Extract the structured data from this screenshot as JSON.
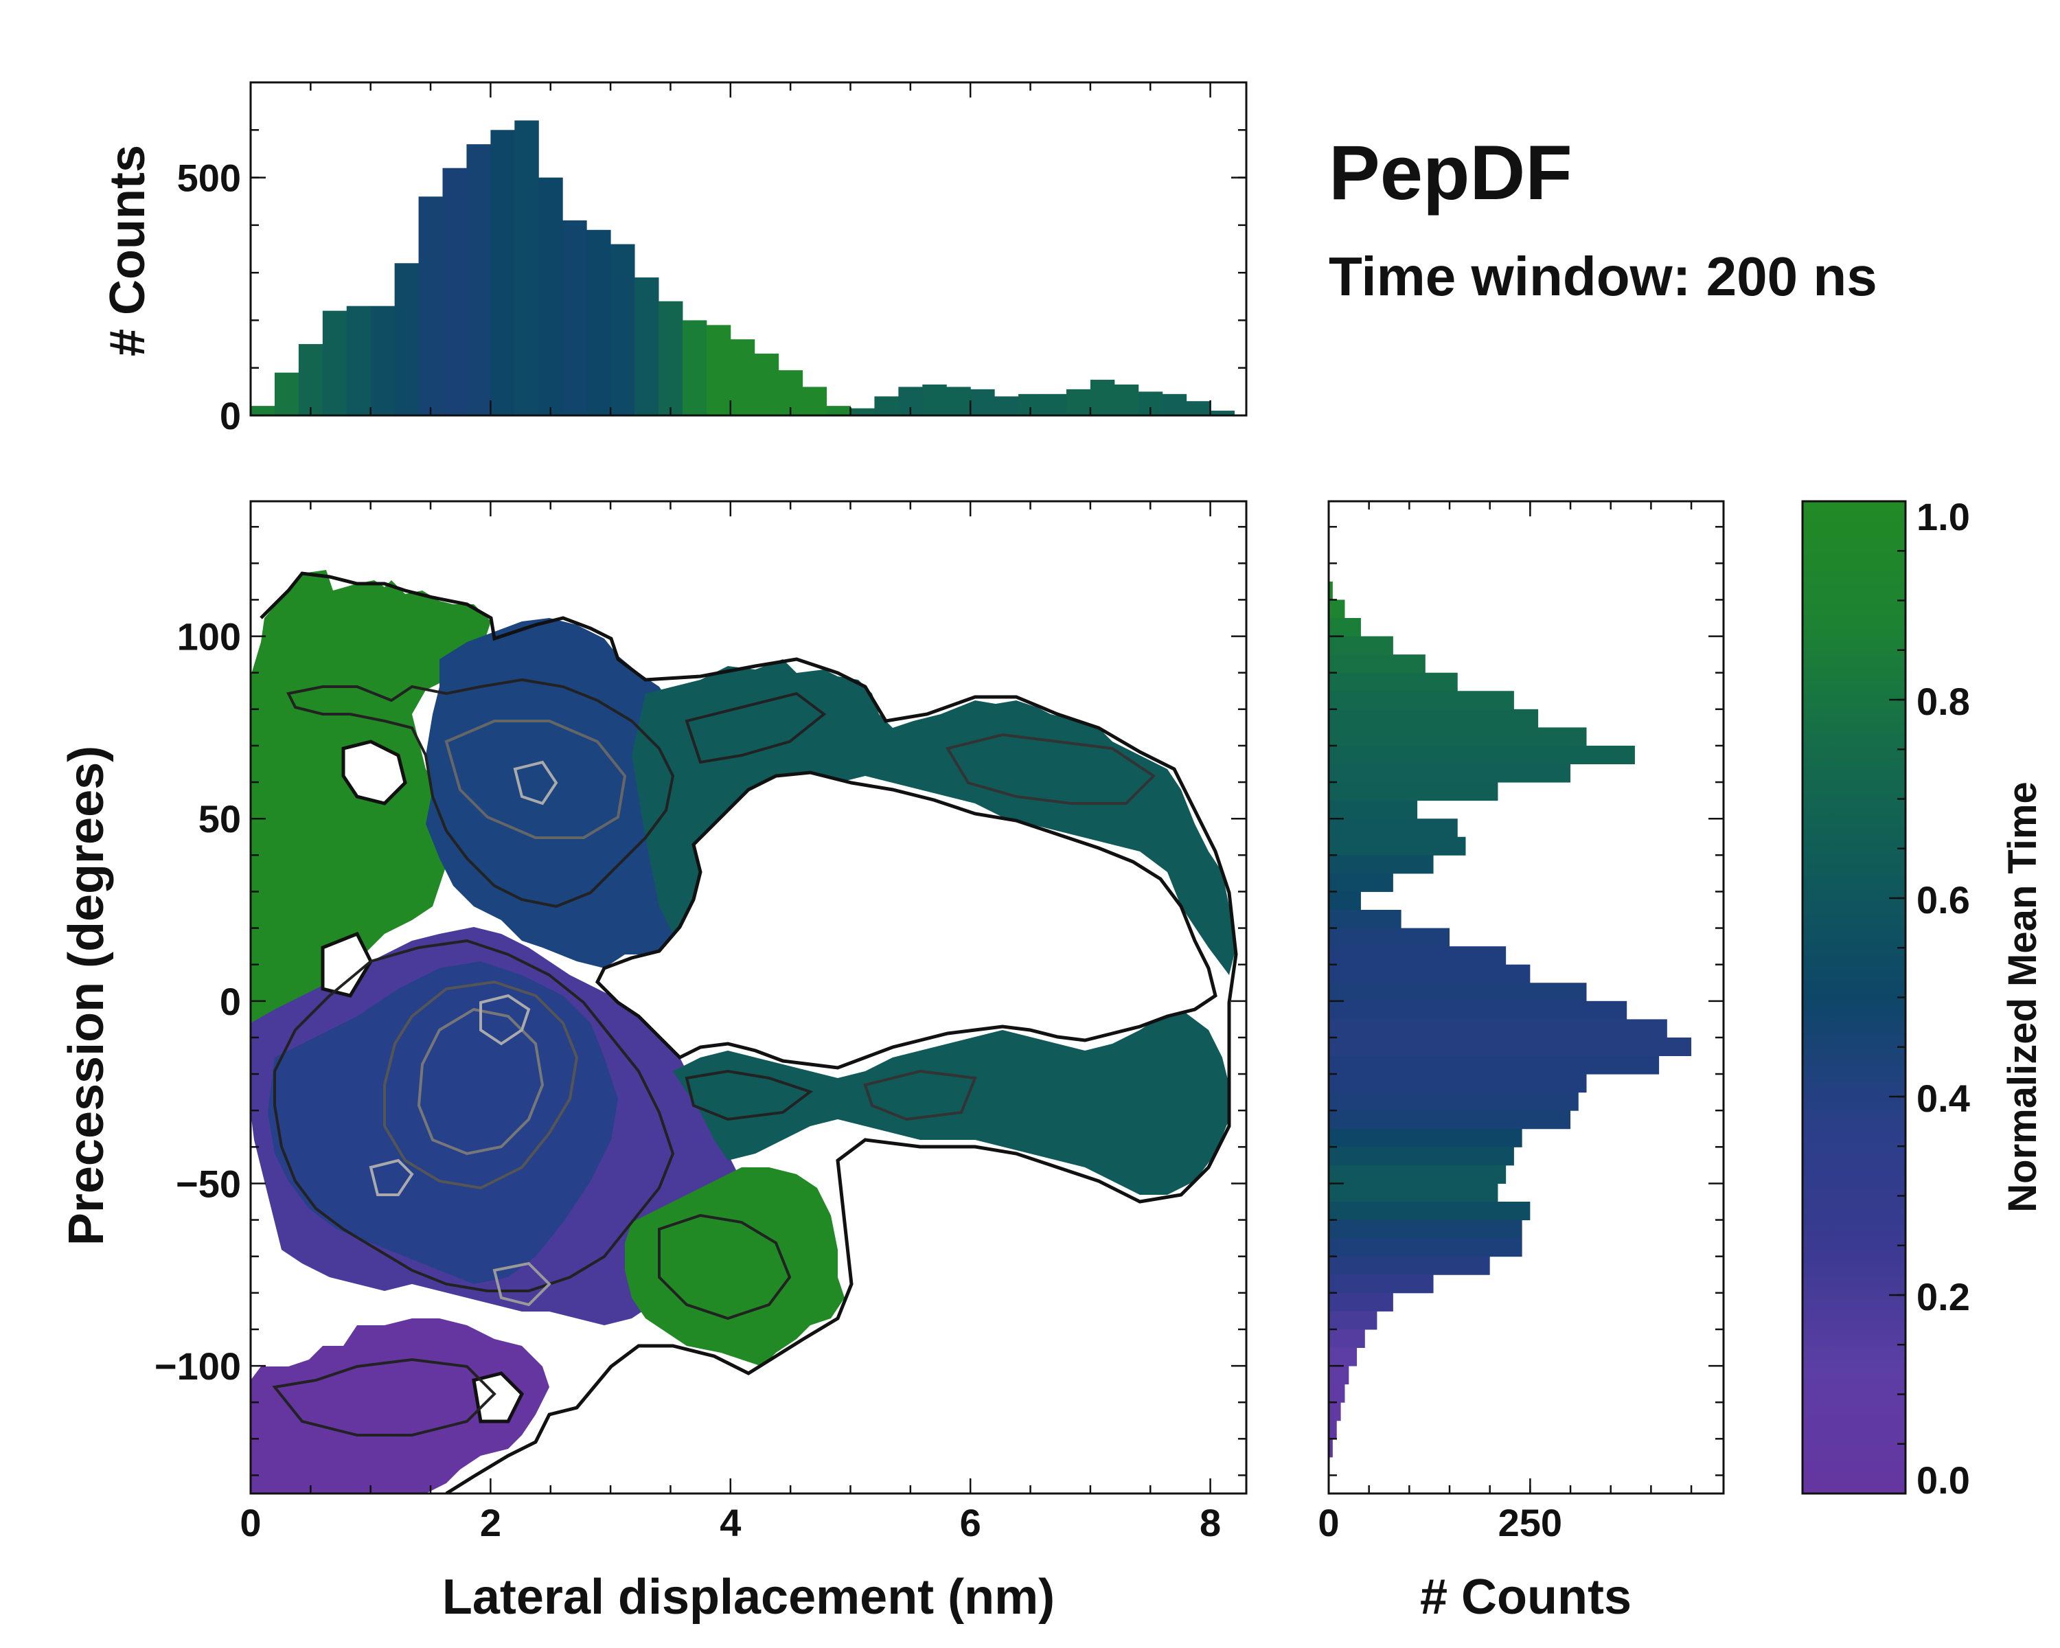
{
  "chart_data": {
    "type": "heatmap",
    "title": "PepDF",
    "subtitle": "Time window: 200 ns",
    "main": {
      "xlabel": "Lateral displacement (nm)",
      "ylabel": "Precession (degrees)",
      "xlim": [
        0,
        8.3
      ],
      "ylim": [
        -135,
        137
      ],
      "xticks": [
        0,
        2,
        4,
        6,
        8
      ],
      "yticks": [
        -100,
        -50,
        0,
        50,
        100
      ],
      "density_regions": [
        {
          "name": "upper-left green lobe",
          "x": [
            0.0,
            1.7
          ],
          "y": [
            0,
            115
          ],
          "mean_time": 0.95
        },
        {
          "name": "upper central blue lobe",
          "x": [
            1.3,
            3.8
          ],
          "y": [
            20,
            100
          ],
          "mean_time": 0.55
        },
        {
          "name": "upper arm",
          "x": [
            3.5,
            8.1
          ],
          "y": [
            25,
            90
          ],
          "mean_time": 0.68
        },
        {
          "name": "central purple-blue core",
          "x": [
            0.0,
            3.4
          ],
          "y": [
            -95,
            15
          ],
          "mean_time": 0.3
        },
        {
          "name": "lower arm",
          "x": [
            3.3,
            8.1
          ],
          "y": [
            -60,
            -15
          ],
          "mean_time": 0.68
        },
        {
          "name": "lower right green lobe",
          "x": [
            3.0,
            5.0
          ],
          "y": [
            -100,
            -45
          ],
          "mean_time": 0.95
        },
        {
          "name": "bottom purple lobe",
          "x": [
            0.0,
            2.8
          ],
          "y": [
            -135,
            -90
          ],
          "mean_time": 0.1
        }
      ]
    },
    "top_histogram": {
      "ylabel": "# Counts",
      "yticks": [
        0,
        500
      ],
      "ylim": [
        0,
        700
      ],
      "x": [
        0.0,
        0.2,
        0.4,
        0.6,
        0.8,
        1.0,
        1.2,
        1.4,
        1.6,
        1.8,
        2.0,
        2.2,
        2.4,
        2.6,
        2.8,
        3.0,
        3.2,
        3.4,
        3.6,
        3.8,
        4.0,
        4.2,
        4.4,
        4.6,
        4.8,
        5.0,
        5.2,
        5.4,
        5.6,
        5.8,
        6.0,
        6.2,
        6.4,
        6.6,
        6.8,
        7.0,
        7.2,
        7.4,
        7.6,
        7.8,
        8.0,
        8.2
      ],
      "counts": [
        20,
        90,
        150,
        220,
        230,
        230,
        320,
        460,
        520,
        570,
        600,
        620,
        500,
        410,
        390,
        360,
        290,
        240,
        200,
        190,
        160,
        130,
        95,
        60,
        20,
        15,
        40,
        60,
        65,
        60,
        55,
        40,
        45,
        45,
        55,
        75,
        65,
        50,
        45,
        30,
        10,
        0
      ],
      "mean_time": [
        0.85,
        0.8,
        0.7,
        0.65,
        0.6,
        0.55,
        0.52,
        0.45,
        0.42,
        0.45,
        0.5,
        0.52,
        0.5,
        0.48,
        0.5,
        0.52,
        0.6,
        0.7,
        0.85,
        0.95,
        0.95,
        0.95,
        0.95,
        0.95,
        0.9,
        0.7,
        0.68,
        0.66,
        0.68,
        0.68,
        0.66,
        0.66,
        0.68,
        0.68,
        0.7,
        0.7,
        0.7,
        0.68,
        0.66,
        0.66,
        0.66,
        0.66
      ]
    },
    "right_histogram": {
      "xlabel": "# Counts",
      "xticks": [
        0,
        250
      ],
      "xlim": [
        0,
        490
      ],
      "y": [
        115,
        110,
        105,
        100,
        95,
        90,
        85,
        80,
        75,
        70,
        65,
        60,
        55,
        50,
        45,
        40,
        35,
        30,
        25,
        20,
        15,
        10,
        5,
        0,
        -5,
        -10,
        -15,
        -20,
        -25,
        -30,
        -35,
        -40,
        -45,
        -50,
        -55,
        -60,
        -65,
        -70,
        -75,
        -80,
        -85,
        -90,
        -95,
        -100,
        -105,
        -110,
        -115,
        -120,
        -125,
        -130
      ],
      "counts": [
        5,
        20,
        40,
        80,
        120,
        160,
        230,
        260,
        320,
        380,
        300,
        210,
        110,
        160,
        170,
        130,
        80,
        40,
        90,
        150,
        220,
        250,
        320,
        370,
        420,
        450,
        410,
        320,
        310,
        300,
        240,
        230,
        220,
        210,
        250,
        240,
        240,
        200,
        130,
        80,
        60,
        45,
        35,
        25,
        20,
        15,
        10,
        5,
        0,
        0
      ],
      "mean_time": [
        0.95,
        0.9,
        0.85,
        0.8,
        0.78,
        0.75,
        0.72,
        0.7,
        0.7,
        0.68,
        0.66,
        0.65,
        0.62,
        0.6,
        0.6,
        0.55,
        0.52,
        0.5,
        0.45,
        0.4,
        0.38,
        0.38,
        0.4,
        0.38,
        0.36,
        0.36,
        0.38,
        0.38,
        0.4,
        0.42,
        0.5,
        0.55,
        0.6,
        0.6,
        0.55,
        0.45,
        0.4,
        0.35,
        0.3,
        0.25,
        0.2,
        0.15,
        0.12,
        0.1,
        0.08,
        0.06,
        0.05,
        0.04,
        0.03,
        0.02
      ]
    },
    "colorbar": {
      "label": "Normalized Mean Time",
      "range": [
        0.0,
        1.0
      ],
      "ticks": [
        "0.0",
        "0.2",
        "0.4",
        "0.6",
        "0.8",
        "1.0"
      ],
      "tick_values": [
        0.0,
        0.2,
        0.4,
        0.6,
        0.8,
        1.0
      ],
      "colors": [
        "#6535a0",
        "#5c3ea4",
        "#3a3a91",
        "#213e7e",
        "#0e4668",
        "#105a5a",
        "#156c4a",
        "#1d8233",
        "#228a25"
      ]
    }
  }
}
